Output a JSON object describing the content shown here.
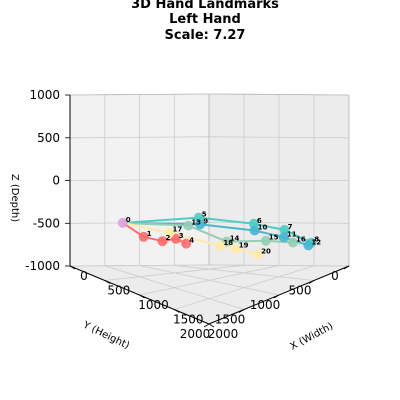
{
  "chart_data": {
    "type": "scatter3d",
    "title_lines": [
      "3D Hand Landmarks",
      "Left Hand",
      "Scale: 7.27"
    ],
    "xlabel": "X (Width)",
    "ylabel": "Y (Height)",
    "zlabel": "Z (Depth)",
    "xlim": [
      0,
      2000
    ],
    "ylim": [
      0,
      2000
    ],
    "zlim": [
      -1000,
      1000
    ],
    "xticks": [
      0,
      500,
      1000,
      1500,
      2000
    ],
    "yticks": [
      0,
      500,
      1000,
      1500,
      2000
    ],
    "zticks": [
      -1000,
      -500,
      0,
      500,
      1000
    ],
    "grid": true,
    "view": {
      "elev": 20,
      "azim": 45
    },
    "landmarks": [
      {
        "id": "0",
        "x": 0,
        "y": 1240,
        "z": -500
      },
      {
        "id": "1",
        "x": 260,
        "y": 1200,
        "z": -610
      },
      {
        "id": "2",
        "x": 480,
        "y": 1150,
        "z": -620
      },
      {
        "id": "3",
        "x": 620,
        "y": 1100,
        "z": -570
      },
      {
        "id": "4",
        "x": 730,
        "y": 1060,
        "z": -610
      },
      {
        "id": "5",
        "x": 570,
        "y": 720,
        "z": -370
      },
      {
        "id": "6",
        "x": 960,
        "y": 320,
        "z": -460
      },
      {
        "id": "7",
        "x": 1190,
        "y": 110,
        "z": -560
      },
      {
        "id": "8",
        "x": 1380,
        "y": -80,
        "z": -750
      },
      {
        "id": "9",
        "x": 620,
        "y": 750,
        "z": -440
      },
      {
        "id": "10",
        "x": 1000,
        "y": 350,
        "z": -530
      },
      {
        "id": "11",
        "x": 1210,
        "y": 140,
        "z": -640
      },
      {
        "id": "12",
        "x": 1390,
        "y": -30,
        "z": -770
      },
      {
        "id": "13",
        "x": 600,
        "y": 900,
        "z": -440
      },
      {
        "id": "14",
        "x": 860,
        "y": 610,
        "z": -630
      },
      {
        "id": "15",
        "x": 1120,
        "y": 310,
        "z": -650
      },
      {
        "id": "16",
        "x": 1290,
        "y": 90,
        "z": -710
      },
      {
        "id": "17",
        "x": 440,
        "y": 1010,
        "z": -540
      },
      {
        "id": "18",
        "x": 850,
        "y": 690,
        "z": -670
      },
      {
        "id": "19",
        "x": 980,
        "y": 600,
        "z": -700
      },
      {
        "id": "20",
        "x": 1150,
        "y": 450,
        "z": -780
      }
    ],
    "connections": [
      {
        "color": "#FF6B6B",
        "points": [
          "0",
          "1",
          "2",
          "3",
          "4"
        ]
      },
      {
        "color": "#4ECDC4",
        "points": [
          "0",
          "5",
          "6",
          "7",
          "8"
        ]
      },
      {
        "color": "#45B7D1",
        "points": [
          "0",
          "9",
          "10",
          "11",
          "12"
        ]
      },
      {
        "color": "#96CEB4",
        "points": [
          "0",
          "13",
          "14",
          "15",
          "16"
        ]
      },
      {
        "color": "#FFEAA7",
        "points": [
          "0",
          "17",
          "18",
          "19",
          "20"
        ]
      }
    ],
    "landmark_colors": {
      "0": "#DDA0DD",
      "1": "#FF6B6B",
      "2": "#FF6B6B",
      "3": "#FF6B6B",
      "4": "#FF6B6B",
      "5": "#4ECDC4",
      "6": "#4ECDC4",
      "7": "#4ECDC4",
      "8": "#4ECDC4",
      "9": "#45B7D1",
      "10": "#45B7D1",
      "11": "#45B7D1",
      "12": "#45B7D1",
      "13": "#96CEB4",
      "14": "#96CEB4",
      "15": "#96CEB4",
      "16": "#96CEB4",
      "17": "#FFEAA7",
      "18": "#FFEAA7",
      "19": "#FFEAA7",
      "20": "#FFEAA7"
    }
  }
}
